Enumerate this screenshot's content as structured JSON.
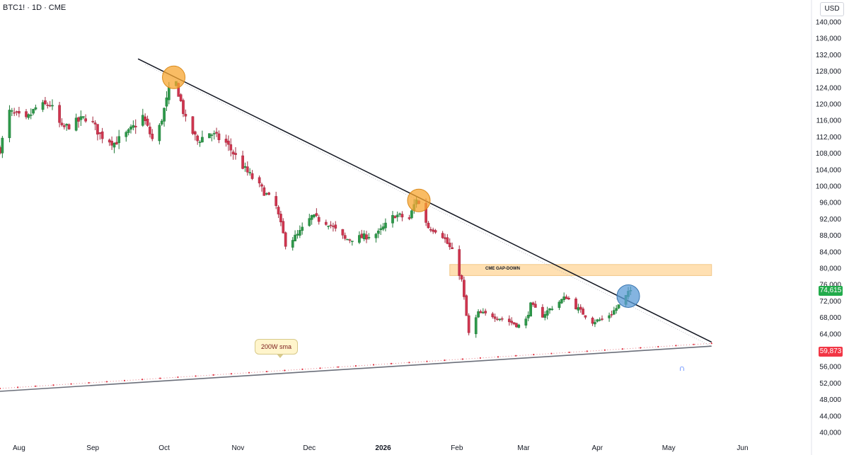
{
  "header": {
    "symbol": "BTC1! · 1D · CME",
    "currency": "USD"
  },
  "price_badges": {
    "last": "74,615",
    "sma": "59,873"
  },
  "annotations": {
    "gap": "CME GAP-DOWN",
    "sma_note": "200W sma"
  },
  "icons": {
    "magnet": "magnet-icon"
  },
  "colors": {
    "up": "#2e9a4b",
    "down": "#d1354f",
    "wick_up": "#1e7a36",
    "wick_down": "#a32a3f",
    "gap_zone": "#ffe0b2",
    "circle_orange": "#f7a530",
    "circle_blue": "#5b9bd5",
    "trend": "#131722",
    "sma_dots": "#e0303f"
  },
  "chart_data": {
    "type": "candlestick",
    "symbol": "BTC1!",
    "timeframe": "1D",
    "exchange": "CME",
    "y_unit": "USD",
    "ylim": [
      40000,
      140000
    ],
    "y_ticks": [
      140000,
      136000,
      132000,
      128000,
      124000,
      120000,
      116000,
      112000,
      108000,
      104000,
      100000,
      96000,
      92000,
      88000,
      84000,
      80000,
      76000,
      72000,
      68000,
      64000,
      60000,
      56000,
      52000,
      48000,
      44000,
      40000
    ],
    "y_tick_labels": [
      "140,000",
      "136,000",
      "132,000",
      "128,000",
      "124,000",
      "120,000",
      "116,000",
      "112,000",
      "108,000",
      "104,000",
      "100,000",
      "96,000",
      "92,000",
      "88,000",
      "84,000",
      "80,000",
      "76,000",
      "72,000",
      "68,000",
      "64,000",
      "60,000",
      "56,000",
      "52,000",
      "48,000",
      "44,000",
      "40,000"
    ],
    "x_range": [
      "2025-07-24",
      "2026-06-30"
    ],
    "x_ticks": [
      {
        "date": "2025-08-01",
        "label": "Aug"
      },
      {
        "date": "2025-09-01",
        "label": "Sep"
      },
      {
        "date": "2025-10-01",
        "label": "Oct"
      },
      {
        "date": "2025-11-01",
        "label": "Nov"
      },
      {
        "date": "2025-12-01",
        "label": "Dec"
      },
      {
        "date": "2026-01-01",
        "label": "2026",
        "bold": true
      },
      {
        "date": "2026-02-01",
        "label": "Feb"
      },
      {
        "date": "2026-03-01",
        "label": "Mar"
      },
      {
        "date": "2026-04-01",
        "label": "Apr"
      },
      {
        "date": "2026-05-01",
        "label": "May"
      },
      {
        "date": "2026-06-01",
        "label": "Jun"
      }
    ],
    "close_path": [
      [
        "2025-07-24",
        109000
      ],
      [
        "2025-07-28",
        118000
      ],
      [
        "2025-08-04",
        116000
      ],
      [
        "2025-08-08",
        119000
      ],
      [
        "2025-08-14",
        120000
      ],
      [
        "2025-08-19",
        114000
      ],
      [
        "2025-08-23",
        115000
      ],
      [
        "2025-08-30",
        117000
      ],
      [
        "2025-09-04",
        112500
      ],
      [
        "2025-09-10",
        110500
      ],
      [
        "2025-09-16",
        113000
      ],
      [
        "2025-09-22",
        117000
      ],
      [
        "2025-09-27",
        110000
      ],
      [
        "2025-10-03",
        123000
      ],
      [
        "2025-10-06",
        125000
      ],
      [
        "2025-10-10",
        116000
      ],
      [
        "2025-10-15",
        111000
      ],
      [
        "2025-10-20",
        113000
      ],
      [
        "2025-10-27",
        110500
      ],
      [
        "2025-11-04",
        104000
      ],
      [
        "2025-11-10",
        100000
      ],
      [
        "2025-11-17",
        95000
      ],
      [
        "2025-11-21",
        86000
      ],
      [
        "2025-11-26",
        88000
      ],
      [
        "2025-12-02",
        92500
      ],
      [
        "2025-12-09",
        91000
      ],
      [
        "2025-12-16",
        87000
      ],
      [
        "2025-12-23",
        87500
      ],
      [
        "2025-12-30",
        88500
      ],
      [
        "2026-01-06",
        93000
      ],
      [
        "2026-01-12",
        92000
      ],
      [
        "2026-01-15",
        97000
      ],
      [
        "2026-01-20",
        90000
      ],
      [
        "2026-01-25",
        89000
      ],
      [
        "2026-01-30",
        84000
      ],
      [
        "2026-02-03",
        77000
      ],
      [
        "2026-02-06",
        64000
      ],
      [
        "2026-02-10",
        69000
      ],
      [
        "2026-02-16",
        68500
      ],
      [
        "2026-02-23",
        67000
      ],
      [
        "2026-03-01",
        65500
      ],
      [
        "2026-03-04",
        71000
      ],
      [
        "2026-03-09",
        68500
      ],
      [
        "2026-03-14",
        71000
      ],
      [
        "2026-03-19",
        73000
      ],
      [
        "2026-03-24",
        70000
      ],
      [
        "2026-03-30",
        67000
      ],
      [
        "2026-04-03",
        67500
      ],
      [
        "2026-04-07",
        69000
      ],
      [
        "2026-04-11",
        71500
      ],
      [
        "2026-04-15",
        74615
      ]
    ],
    "last_price": 74615,
    "trendline": {
      "from": [
        "2025-09-20",
        131000
      ],
      "to": [
        "2026-05-19",
        62000
      ]
    },
    "sma_200w": {
      "name": "200W sma",
      "from": [
        "2025-07-24",
        50000
      ],
      "to": [
        "2026-05-19",
        61000
      ],
      "last_value": 59873
    },
    "gap_zone": {
      "label": "CME GAP-DOWN",
      "from_date": "2026-01-29",
      "to_date": "2026-05-19",
      "low": 78200,
      "high": 80900
    },
    "touch_markers": [
      {
        "date": "2025-10-05",
        "price": 126500,
        "color": "orange"
      },
      {
        "date": "2026-01-16",
        "price": 96500,
        "color": "orange"
      },
      {
        "date": "2026-04-14",
        "price": 73200,
        "color": "blue"
      }
    ]
  }
}
